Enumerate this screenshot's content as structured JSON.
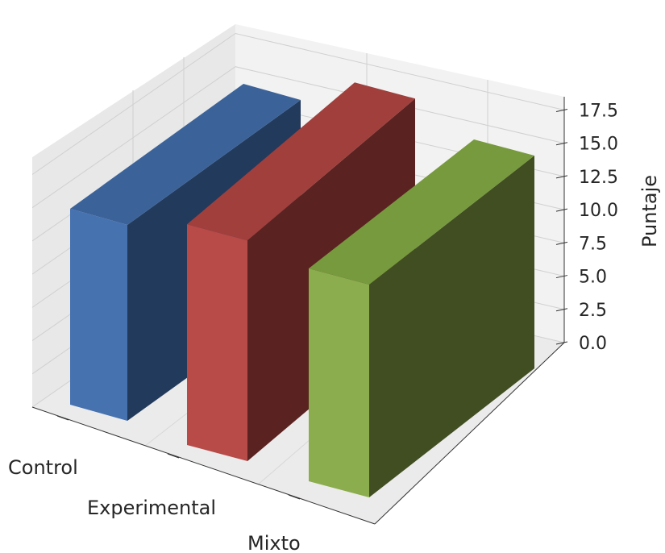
{
  "chart_data": {
    "type": "bar",
    "categories": [
      "Control",
      "Experimental",
      "Mixto"
    ],
    "values": [
      15.0,
      17.0,
      16.5
    ],
    "xlabel": "",
    "ylabel": "Puntaje",
    "zlim": [
      0,
      18.5
    ],
    "z_ticks": [
      "0.0",
      "2.5",
      "5.0",
      "7.5",
      "10.0",
      "12.5",
      "15.0",
      "17.5"
    ],
    "grid": true,
    "colors": {
      "Control": {
        "front": "#4672b0",
        "side": "#223a5c",
        "top": "#3c6399"
      },
      "Experimental": {
        "front": "#b84a48",
        "side": "#5a2220",
        "top": "#a03f3c"
      },
      "Mixto": {
        "front": "#8bad4e",
        "side": "#404e22",
        "top": "#779a3e"
      }
    }
  }
}
